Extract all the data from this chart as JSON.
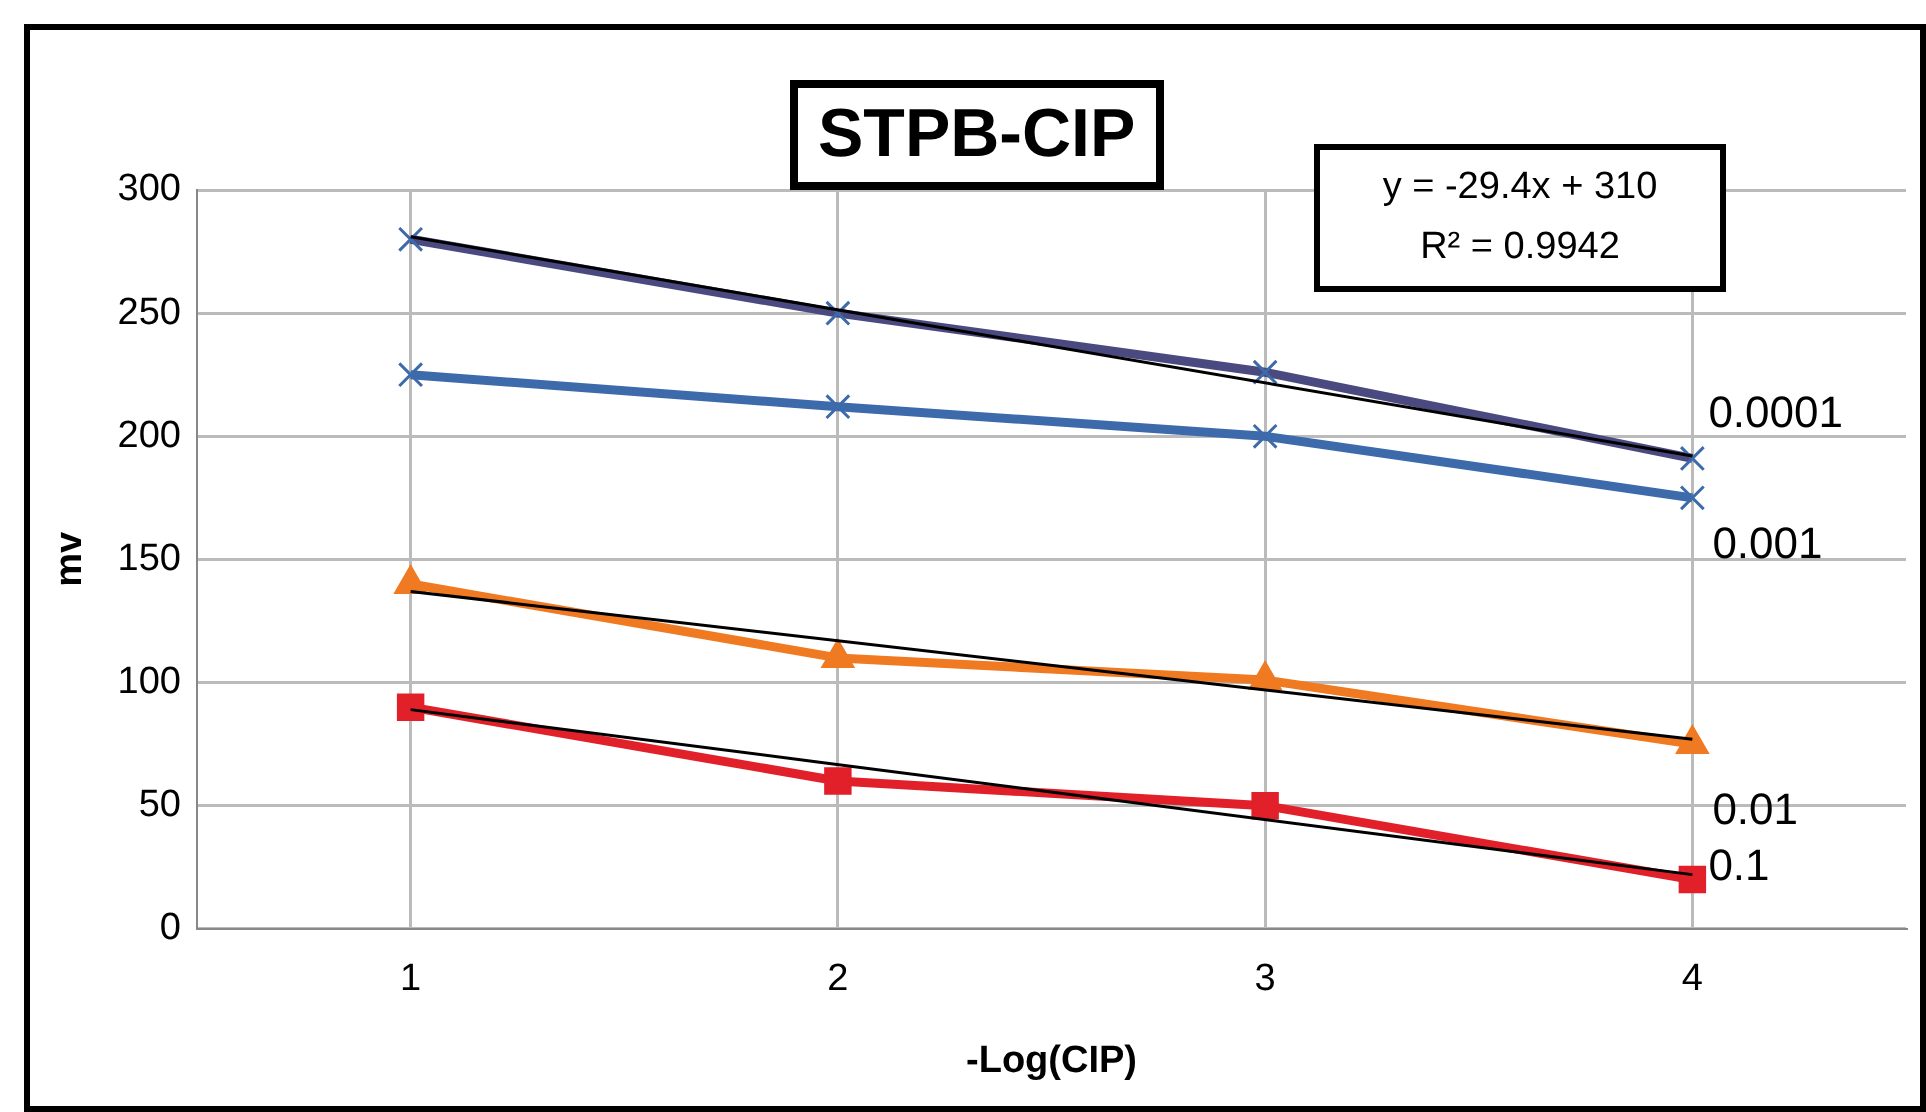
{
  "chart_data": {
    "type": "line",
    "title": "STPB-CIP",
    "xlabel": "-Log(CIP)",
    "ylabel": "mv",
    "annotations": [
      "y = -29.4x + 310",
      "R² = 0.9942"
    ],
    "xlim": [
      0.5,
      4.5
    ],
    "xticks": [
      1,
      2,
      3,
      4
    ],
    "ylim": [
      0,
      300
    ],
    "yticks": [
      0,
      50,
      100,
      150,
      200,
      250,
      300
    ],
    "grid": true,
    "legend": false,
    "line_style": "solid",
    "series": [
      {
        "name": "0.0001",
        "color": "#4b4a80",
        "marker": "cross",
        "x": [
          1,
          2,
          3,
          4
        ],
        "values": [
          280,
          250,
          226,
          191
        ]
      },
      {
        "name": "0.001",
        "color": "#3d6aab",
        "marker": "cross",
        "x": [
          1,
          2,
          3,
          4
        ],
        "values": [
          225,
          212,
          200,
          175
        ]
      },
      {
        "name": "0.01",
        "color": "#f07a22",
        "marker": "triangle",
        "x": [
          1,
          2,
          3,
          4
        ],
        "values": [
          140,
          110,
          101,
          75
        ]
      },
      {
        "name": "0.1",
        "color": "#e1202a",
        "marker": "square",
        "x": [
          1,
          2,
          3,
          4
        ],
        "values": [
          90,
          60,
          50,
          20
        ]
      },
      {
        "type": "line",
        "color": "#000000",
        "marker": "none",
        "x": [
          1,
          4
        ],
        "values": [
          281,
          192
        ]
      },
      {
        "type": "line",
        "color": "#000000",
        "marker": "none",
        "x": [
          1,
          4
        ],
        "values": [
          137,
          77
        ]
      },
      {
        "type": "line",
        "color": "#000000",
        "marker": "none",
        "x": [
          1,
          4
        ],
        "values": [
          89,
          22
        ]
      }
    ]
  }
}
